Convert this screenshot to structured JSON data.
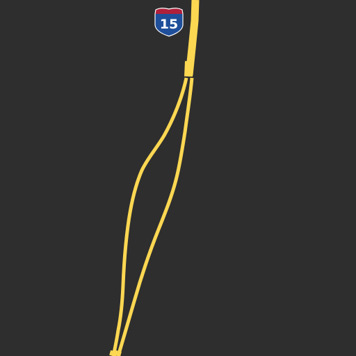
{
  "map": {
    "background_color": "#2e2e2e",
    "road_color": "#fcd752",
    "road_seam_color": "#e8c54a",
    "highway_shield": {
      "route_number": "15",
      "shield_type": "interstate-shield",
      "top_band_color": "#b0203a",
      "body_color": "#1f4f9a",
      "text_color": "#ffffff"
    },
    "roads": [
      {
        "name": "main-carriageway",
        "kind": "highway"
      },
      {
        "name": "northbound-branch",
        "kind": "highway"
      },
      {
        "name": "southbound-branch",
        "kind": "highway"
      }
    ]
  }
}
